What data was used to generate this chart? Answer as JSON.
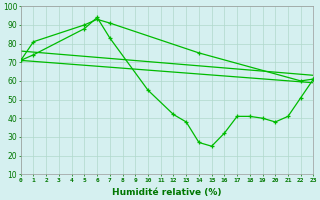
{
  "x": [
    0,
    1,
    2,
    3,
    4,
    5,
    6,
    7,
    8,
    9,
    10,
    11,
    12,
    13,
    14,
    15,
    16,
    17,
    18,
    19,
    20,
    21,
    22,
    23
  ],
  "series1": [
    71,
    81,
    null,
    null,
    null,
    90,
    93,
    91,
    null,
    null,
    null,
    null,
    null,
    null,
    75,
    null,
    null,
    null,
    null,
    null,
    null,
    null,
    60,
    61
  ],
  "series2": [
    71,
    74,
    null,
    null,
    null,
    88,
    94,
    83,
    null,
    null,
    55,
    null,
    42,
    38,
    27,
    25,
    32,
    41,
    41,
    40,
    38,
    41,
    51,
    61
  ],
  "line1_x": [
    0,
    23
  ],
  "line1_y": [
    76,
    63
  ],
  "line2_x": [
    0,
    23
  ],
  "line2_y": [
    71,
    59
  ],
  "xlabel": "Humidité relative (%)",
  "xlim": [
    0,
    23
  ],
  "ylim": [
    10,
    100
  ],
  "yticks": [
    10,
    20,
    30,
    40,
    50,
    60,
    70,
    80,
    90,
    100
  ],
  "xticks": [
    0,
    1,
    2,
    3,
    4,
    5,
    6,
    7,
    8,
    9,
    10,
    11,
    12,
    13,
    14,
    15,
    16,
    17,
    18,
    19,
    20,
    21,
    22,
    23
  ],
  "line_color": "#00bb00",
  "bg_color": "#d5f0f0",
  "grid_color": "#b0d8cc"
}
